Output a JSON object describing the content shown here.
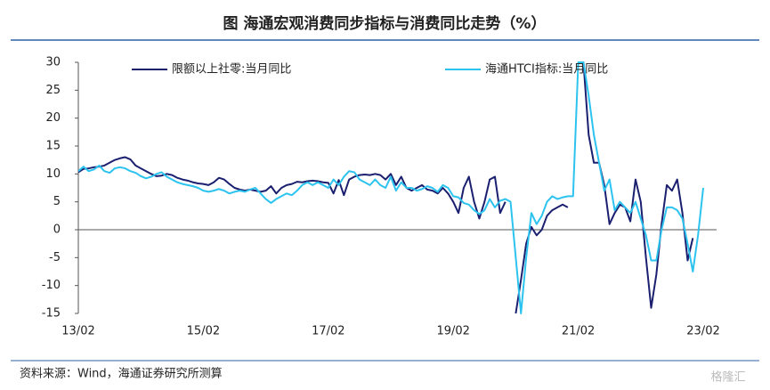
{
  "chart_data": {
    "type": "line",
    "title": "图  海通宏观消费同步指标与消费同比走势（%）",
    "source": "资料来源：Wind，海通证券研究所测算",
    "watermark": "格隆汇",
    "categories": [
      "13/02",
      null,
      null,
      null,
      null,
      null,
      null,
      null,
      null,
      null,
      null,
      null,
      null,
      null,
      null,
      null,
      null,
      null,
      null,
      null,
      null,
      null,
      null,
      null,
      "15/02",
      null,
      null,
      null,
      null,
      null,
      null,
      null,
      null,
      null,
      null,
      null,
      null,
      null,
      null,
      null,
      null,
      null,
      null,
      null,
      null,
      null,
      null,
      null,
      "17/02",
      null,
      null,
      null,
      null,
      null,
      null,
      null,
      null,
      null,
      null,
      null,
      null,
      null,
      null,
      null,
      null,
      null,
      null,
      null,
      null,
      null,
      null,
      null,
      "19/02",
      null,
      null,
      null,
      null,
      null,
      null,
      null,
      null,
      null,
      null,
      null,
      null,
      null,
      null,
      null,
      null,
      null,
      null,
      null,
      null,
      null,
      null,
      null,
      "21/02",
      null,
      null,
      null,
      null,
      null,
      null,
      null,
      null,
      null,
      null,
      null,
      null,
      null,
      null,
      null,
      null,
      null,
      null,
      null,
      null,
      null,
      null,
      null,
      "23/02"
    ],
    "series": [
      {
        "name": "限额以上社零:当月同比",
        "color": "#1b1f6f",
        "values": [
          10.3,
          10.9,
          11.0,
          11.2,
          11.3,
          11.5,
          12.0,
          12.5,
          12.8,
          13.0,
          12.6,
          11.5,
          11.0,
          10.5,
          10.0,
          9.6,
          9.7,
          10.0,
          9.8,
          9.3,
          9.0,
          8.8,
          8.5,
          8.3,
          8.2,
          8.0,
          8.5,
          9.3,
          9.0,
          8.2,
          7.5,
          7.2,
          7.0,
          7.2,
          7.0,
          6.8,
          7.0,
          7.8,
          6.5,
          7.5,
          8.0,
          8.2,
          8.6,
          8.5,
          8.7,
          8.8,
          8.7,
          8.5,
          8.4,
          6.5,
          8.9,
          6.2,
          9.0,
          9.5,
          9.8,
          9.9,
          9.8,
          10.0,
          9.8,
          9.0,
          10.0,
          8.0,
          9.5,
          7.5,
          7.0,
          7.5,
          8.0,
          7.2,
          7.0,
          6.5,
          7.5,
          6.5,
          5.0,
          3.0,
          7.5,
          9.5,
          5.0,
          2.0,
          5.0,
          9.0,
          9.5,
          3.0,
          5.0,
          null,
          -15,
          -9,
          -2.5,
          0.5,
          -1,
          0,
          2.5,
          3.5,
          4.0,
          4.5,
          4.0,
          null,
          30,
          30,
          17,
          12,
          12,
          8,
          1,
          3,
          4.5,
          4,
          1.5,
          9,
          5,
          -5,
          -14,
          -8,
          1,
          8,
          7,
          9,
          3,
          -5.5,
          -1.5,
          null,
          null
        ]
      },
      {
        "name": "海通HTCI指标:当月同比",
        "color": "#2cc3ef",
        "values": [
          10.5,
          11.3,
          10.5,
          10.8,
          11.5,
          10.5,
          10.2,
          11.0,
          11.2,
          11.0,
          10.5,
          10.2,
          9.6,
          9.2,
          9.5,
          10.0,
          10.3,
          9.5,
          9.0,
          8.5,
          8.2,
          8.0,
          7.8,
          7.5,
          7.0,
          6.8,
          7.0,
          7.3,
          7.0,
          6.5,
          6.8,
          7.0,
          6.8,
          7.2,
          7.5,
          6.5,
          5.5,
          4.8,
          5.5,
          6.0,
          6.5,
          6.2,
          7.0,
          8.0,
          8.5,
          8.0,
          8.5,
          8.0,
          7.5,
          9.0,
          8.0,
          9.5,
          10.5,
          10.3,
          9.0,
          8.5,
          8.0,
          9.0,
          8.0,
          7.5,
          9.5,
          7.0,
          8.5,
          7.5,
          7.5,
          7.0,
          7.3,
          7.8,
          7.5,
          6.8,
          8.0,
          7.5,
          6.0,
          5.8,
          4.8,
          4.5,
          3.5,
          2.8,
          3.5,
          5.5,
          4.0,
          5.2,
          5.5,
          5.0,
          -5,
          -15,
          -5,
          3,
          1,
          2.5,
          5,
          6,
          5.5,
          5.8,
          6,
          6,
          30,
          30,
          24,
          17,
          12,
          7,
          9,
          3.5,
          5,
          4,
          3,
          5,
          2,
          -1,
          -5.5,
          -5.5,
          0,
          4,
          4,
          3.5,
          2,
          -2.5,
          -7.5,
          -1,
          7.5
        ]
      }
    ],
    "ylim": [
      -15,
      30
    ],
    "yticks": [
      -15,
      -10,
      -5,
      0,
      5,
      10,
      15,
      20,
      25,
      30
    ]
  }
}
